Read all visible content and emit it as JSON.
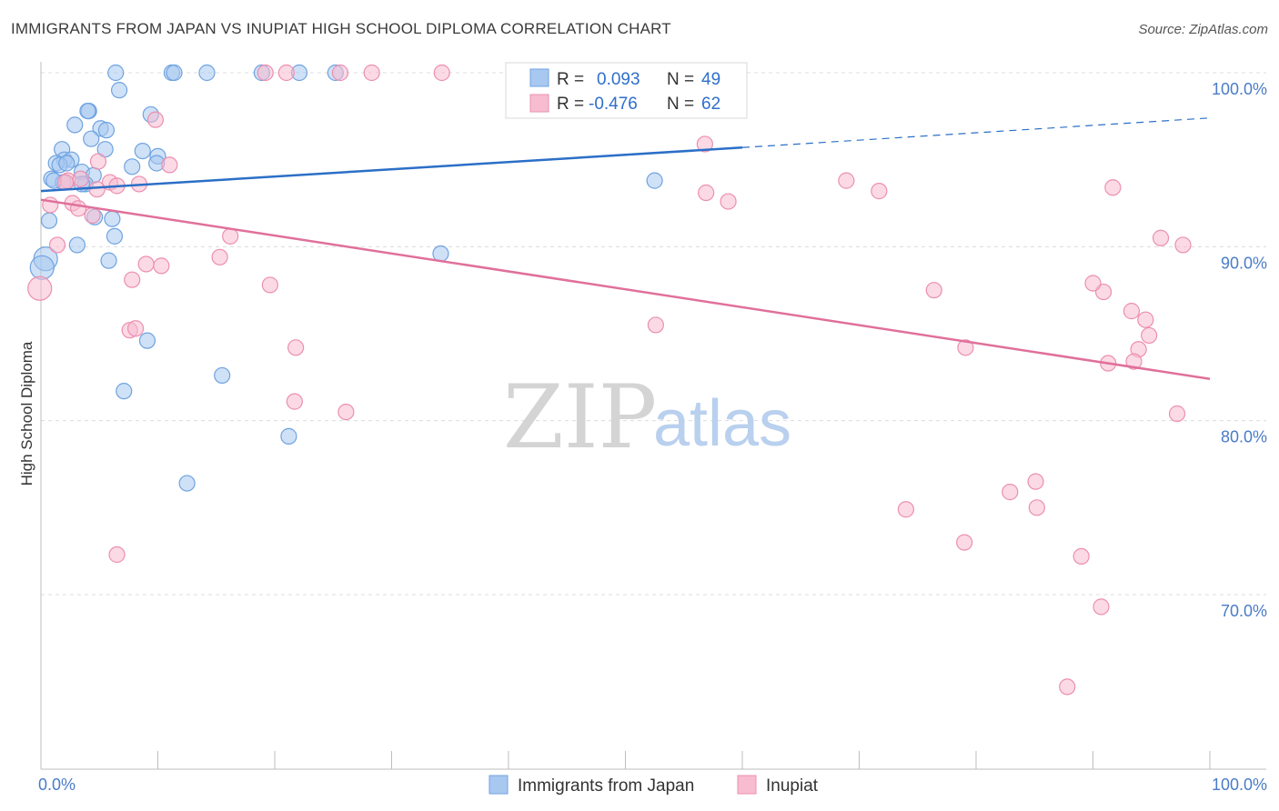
{
  "header": {
    "title": "IMMIGRANTS FROM JAPAN VS INUPIAT HIGH SCHOOL DIPLOMA CORRELATION CHART",
    "source": "Source: ZipAtlas.com"
  },
  "watermark": {
    "zip": "ZIP",
    "atlas": "atlas"
  },
  "legend": {
    "r_label": "R =",
    "n_label": "N =",
    "rows": [
      {
        "r": "0.093",
        "n": "49",
        "color": "#a8c8f0"
      },
      {
        "r": "-0.476",
        "n": "62",
        "color": "#f7bcd0"
      }
    ]
  },
  "chart_data": {
    "type": "scatter",
    "title": "IMMIGRANTS FROM JAPAN VS INUPIAT HIGH SCHOOL DIPLOMA CORRELATION CHART",
    "xlabel": "",
    "ylabel": "High School Diploma",
    "xlim": [
      0,
      100
    ],
    "ylim": [
      60,
      102
    ],
    "x_ticks": [
      "0.0%",
      "100.0%"
    ],
    "y_ticks": [
      {
        "value": 100,
        "label": "100.0%"
      },
      {
        "value": 90,
        "label": "90.0%"
      },
      {
        "value": 80,
        "label": "80.0%"
      },
      {
        "value": 70,
        "label": "70.0%"
      }
    ],
    "grid": true,
    "legend_position": "top-center",
    "series": [
      {
        "name": "Immigrants from Japan",
        "color": "#6fa3e0",
        "fill": "#a8c8f0",
        "trend": {
          "x": [
            0,
            60
          ],
          "y": [
            93.2,
            95.7
          ],
          "dashed_extension": {
            "x": [
              60,
              100
            ],
            "y": [
              95.7,
              97.4
            ]
          },
          "color": "#2b6fc7"
        },
        "points": [
          [
            6.4,
            100
          ],
          [
            11.2,
            100
          ],
          [
            11.4,
            100
          ],
          [
            14.2,
            100
          ],
          [
            18.9,
            100
          ],
          [
            22.1,
            100
          ],
          [
            25.2,
            100
          ],
          [
            41.8,
            100
          ],
          [
            6.7,
            99
          ],
          [
            4.1,
            97.8
          ],
          [
            4.0,
            97.8
          ],
          [
            9.4,
            97.6
          ],
          [
            2.9,
            97.0
          ],
          [
            5.1,
            96.8
          ],
          [
            5.6,
            96.7
          ],
          [
            4.3,
            96.2
          ],
          [
            1.8,
            95.6
          ],
          [
            5.5,
            95.6
          ],
          [
            8.7,
            95.5
          ],
          [
            10.0,
            95.2
          ],
          [
            2.0,
            95.0
          ],
          [
            2.6,
            95.0
          ],
          [
            1.3,
            94.8
          ],
          [
            1.6,
            94.7
          ],
          [
            2.2,
            94.8
          ],
          [
            7.8,
            94.6
          ],
          [
            9.9,
            94.8
          ],
          [
            3.5,
            94.3
          ],
          [
            4.5,
            94.1
          ],
          [
            0.9,
            93.9
          ],
          [
            1.9,
            93.7
          ],
          [
            3.8,
            93.6
          ],
          [
            52.5,
            93.8
          ],
          [
            1.1,
            93.8
          ],
          [
            0.7,
            91.5
          ],
          [
            4.6,
            91.7
          ],
          [
            6.1,
            91.6
          ],
          [
            6.3,
            90.6
          ],
          [
            3.1,
            90.1
          ],
          [
            0.4,
            89.3
          ],
          [
            0.1,
            88.8
          ],
          [
            5.8,
            89.2
          ],
          [
            34.2,
            89.6
          ],
          [
            9.1,
            84.6
          ],
          [
            15.5,
            82.6
          ],
          [
            7.1,
            81.7
          ],
          [
            21.2,
            79.1
          ],
          [
            12.5,
            76.4
          ],
          [
            3.5,
            93.6
          ]
        ]
      },
      {
        "name": "Inupiat",
        "color": "#ec8fb0",
        "fill": "#f7bcd0",
        "trend": {
          "x": [
            0,
            100
          ],
          "y": [
            92.7,
            82.4
          ],
          "color": "#e0709a"
        },
        "points": [
          [
            19.2,
            100
          ],
          [
            21.0,
            100
          ],
          [
            25.6,
            100
          ],
          [
            28.3,
            100
          ],
          [
            34.3,
            100
          ],
          [
            47.3,
            100
          ],
          [
            9.8,
            97.3
          ],
          [
            56.8,
            95.9
          ],
          [
            4.9,
            94.9
          ],
          [
            11.0,
            94.7
          ],
          [
            5.9,
            93.7
          ],
          [
            6.5,
            93.5
          ],
          [
            4.8,
            93.3
          ],
          [
            2.3,
            93.8
          ],
          [
            68.9,
            93.8
          ],
          [
            71.7,
            93.2
          ],
          [
            56.9,
            93.1
          ],
          [
            58.8,
            92.6
          ],
          [
            91.7,
            93.4
          ],
          [
            0.8,
            92.4
          ],
          [
            2.7,
            92.5
          ],
          [
            3.2,
            92.2
          ],
          [
            4.4,
            91.8
          ],
          [
            16.2,
            90.6
          ],
          [
            1.4,
            90.1
          ],
          [
            95.8,
            90.5
          ],
          [
            97.7,
            90.1
          ],
          [
            15.3,
            89.4
          ],
          [
            9.0,
            89.0
          ],
          [
            10.3,
            88.9
          ],
          [
            7.8,
            88.1
          ],
          [
            19.6,
            87.8
          ],
          [
            76.4,
            87.5
          ],
          [
            90.9,
            87.4
          ],
          [
            90.0,
            87.9
          ],
          [
            93.3,
            86.3
          ],
          [
            94.5,
            85.8
          ],
          [
            52.6,
            85.5
          ],
          [
            7.6,
            85.2
          ],
          [
            8.1,
            85.3
          ],
          [
            94.8,
            84.9
          ],
          [
            21.8,
            84.2
          ],
          [
            79.1,
            84.2
          ],
          [
            93.9,
            84.1
          ],
          [
            91.3,
            83.3
          ],
          [
            93.5,
            83.4
          ],
          [
            21.7,
            81.1
          ],
          [
            26.1,
            80.5
          ],
          [
            97.2,
            80.4
          ],
          [
            85.1,
            76.5
          ],
          [
            82.9,
            75.9
          ],
          [
            85.2,
            75.0
          ],
          [
            74.0,
            74.9
          ],
          [
            79.0,
            73.0
          ],
          [
            89.0,
            72.2
          ],
          [
            6.5,
            72.3
          ],
          [
            90.7,
            69.3
          ],
          [
            87.8,
            64.7
          ],
          [
            -0.1,
            87.6
          ],
          [
            2.1,
            93.7
          ],
          [
            3.4,
            93.9
          ],
          [
            8.4,
            93.6
          ]
        ]
      }
    ]
  }
}
